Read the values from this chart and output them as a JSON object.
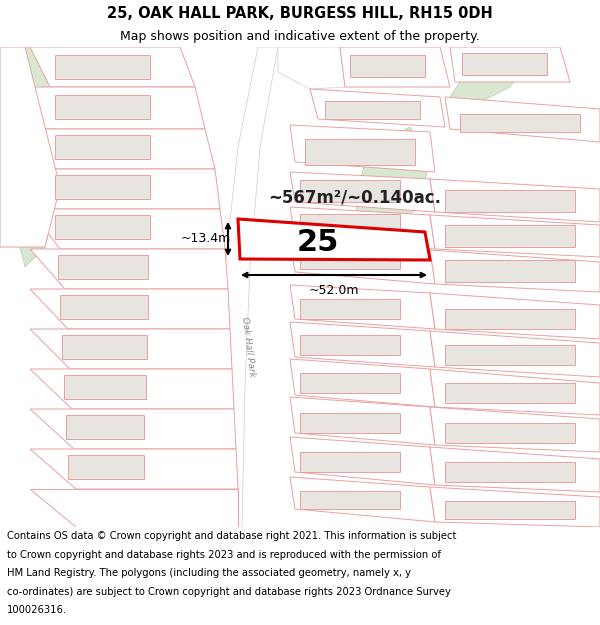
{
  "title_line1": "25, OAK HALL PARK, BURGESS HILL, RH15 0DH",
  "title_line2": "Map shows position and indicative extent of the property.",
  "footer_lines": [
    "Contains OS data © Crown copyright and database right 2021. This information is subject",
    "to Crown copyright and database rights 2023 and is reproduced with the permission of",
    "HM Land Registry. The polygons (including the associated geometry, namely x, y",
    "co-ordinates) are subject to Crown copyright and database rights 2023 Ordnance Survey",
    "100026316."
  ],
  "map_bg": "#f8f8f8",
  "plot_outline_color": "#dd0000",
  "building_fill": "#e8e4e0",
  "building_outline": "#e8a0a0",
  "plot_outline_thin": "#e8a0a0",
  "green_fill": "#d8e8d0",
  "green_stroke": "#b8ccb0",
  "road_fill": "#f0eeec",
  "road_stroke": "#cccccc",
  "area_text": "~567m²/~0.140ac.",
  "plot_number": "25",
  "dim_width": "~52.0m",
  "dim_height": "~13.4m",
  "title_fontsize": 10.5,
  "subtitle_fontsize": 9,
  "footer_fontsize": 7.2,
  "road_label": "Oak Hall Park"
}
